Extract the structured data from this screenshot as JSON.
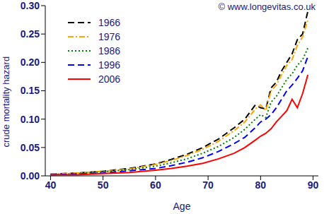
{
  "chart_data": {
    "type": "line",
    "annotation": "© www.longevitas.co.uk",
    "x_label": "Age",
    "y_label": "crude mortality hazard",
    "x": [
      40,
      45,
      50,
      55,
      60,
      63,
      66,
      69,
      72,
      75,
      77,
      79,
      80,
      81,
      82,
      83,
      84,
      85,
      86,
      87,
      88,
      89
    ],
    "series": [
      {
        "name": "1966",
        "color": "#000000",
        "line_style": "dashed",
        "values": [
          0.003,
          0.005,
          0.008,
          0.013,
          0.021,
          0.029,
          0.038,
          0.05,
          0.065,
          0.085,
          0.1,
          0.125,
          0.12,
          0.118,
          0.155,
          0.165,
          0.185,
          0.2,
          0.215,
          0.24,
          0.25,
          0.29
        ]
      },
      {
        "name": "1976",
        "color": "#ffa500",
        "line_style": "dashdot",
        "values": [
          0.003,
          0.005,
          0.008,
          0.012,
          0.02,
          0.027,
          0.036,
          0.047,
          0.061,
          0.08,
          0.095,
          0.118,
          0.125,
          0.115,
          0.15,
          0.16,
          0.178,
          0.195,
          0.205,
          0.23,
          0.245,
          0.275
        ]
      },
      {
        "name": "1986",
        "color": "#008000",
        "line_style": "dotted",
        "values": [
          0.002,
          0.004,
          0.007,
          0.011,
          0.017,
          0.023,
          0.03,
          0.04,
          0.052,
          0.068,
          0.082,
          0.1,
          0.108,
          0.103,
          0.13,
          0.14,
          0.155,
          0.17,
          0.18,
          0.195,
          0.205,
          0.225
        ]
      },
      {
        "name": "1996",
        "color": "#0000ff",
        "line_style": "dashed",
        "values": [
          0.002,
          0.003,
          0.005,
          0.009,
          0.013,
          0.018,
          0.024,
          0.032,
          0.043,
          0.057,
          0.068,
          0.085,
          0.095,
          0.1,
          0.108,
          0.12,
          0.135,
          0.15,
          0.16,
          0.172,
          0.185,
          0.21
        ]
      },
      {
        "name": "2006",
        "color": "#ff0000",
        "line_style": "solid",
        "values": [
          0.002,
          0.002,
          0.004,
          0.006,
          0.01,
          0.013,
          0.017,
          0.022,
          0.03,
          0.04,
          0.05,
          0.063,
          0.07,
          0.075,
          0.083,
          0.095,
          0.105,
          0.115,
          0.135,
          0.12,
          0.145,
          0.178
        ]
      }
    ],
    "xlim": [
      39,
      91
    ],
    "xticks": [
      40,
      50,
      60,
      70,
      80,
      90
    ],
    "ylim": [
      0,
      0.3
    ],
    "yticks": [
      {
        "value": 0,
        "label": "0.00"
      },
      {
        "value": 0.05,
        "label": "0.05"
      },
      {
        "value": 0.1,
        "label": "0.10"
      },
      {
        "value": 0.15,
        "label": "0.15"
      },
      {
        "value": 0.2,
        "label": "0.20"
      },
      {
        "value": 0.25,
        "label": "0.25"
      },
      {
        "value": 0.3,
        "label": "0.30"
      }
    ],
    "legend": "upper left",
    "grid": false
  }
}
